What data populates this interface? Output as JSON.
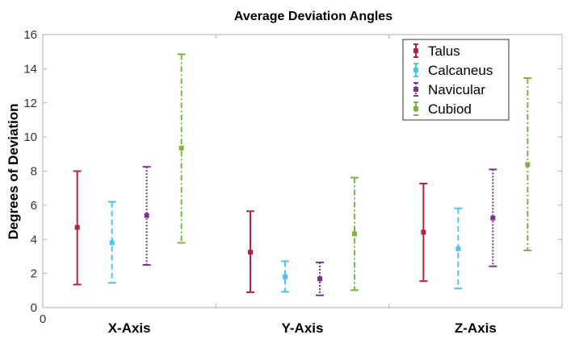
{
  "chart_data": {
    "type": "errorbar",
    "title": "Average Deviation Angles",
    "xlabel": "",
    "ylabel": "Degrees of Deviation",
    "categories": [
      "X-Axis",
      "Y-Axis",
      "Z-Axis"
    ],
    "ylim": [
      0,
      16
    ],
    "yticks": [
      0,
      2,
      4,
      6,
      8,
      10,
      12,
      14,
      16
    ],
    "xtick_label_zero": "0",
    "grid": false,
    "legend_position": "top-right",
    "series": [
      {
        "name": "Talus",
        "color": "#b5243f",
        "dash": "solid",
        "values": [
          4.7,
          3.25,
          4.42
        ],
        "lower": [
          1.35,
          0.9,
          1.55
        ],
        "upper": [
          8.0,
          5.65,
          7.27
        ]
      },
      {
        "name": "Calcaneus",
        "color": "#4fc3ee",
        "dash": "dashed",
        "values": [
          3.8,
          1.8,
          3.45
        ],
        "lower": [
          1.45,
          0.92,
          1.12
        ],
        "upper": [
          6.2,
          2.72,
          5.82
        ]
      },
      {
        "name": "Navicular",
        "color": "#7b3294",
        "dash": "dotted",
        "values": [
          5.4,
          1.68,
          5.25
        ],
        "lower": [
          2.5,
          0.72,
          2.42
        ],
        "upper": [
          8.25,
          2.65,
          8.1
        ]
      },
      {
        "name": "Cubiod",
        "color": "#7cb342",
        "dash": "dashdot",
        "values": [
          9.35,
          4.32,
          8.38
        ],
        "lower": [
          3.8,
          1.02,
          3.35
        ],
        "upper": [
          14.85,
          7.62,
          13.45
        ]
      }
    ]
  }
}
